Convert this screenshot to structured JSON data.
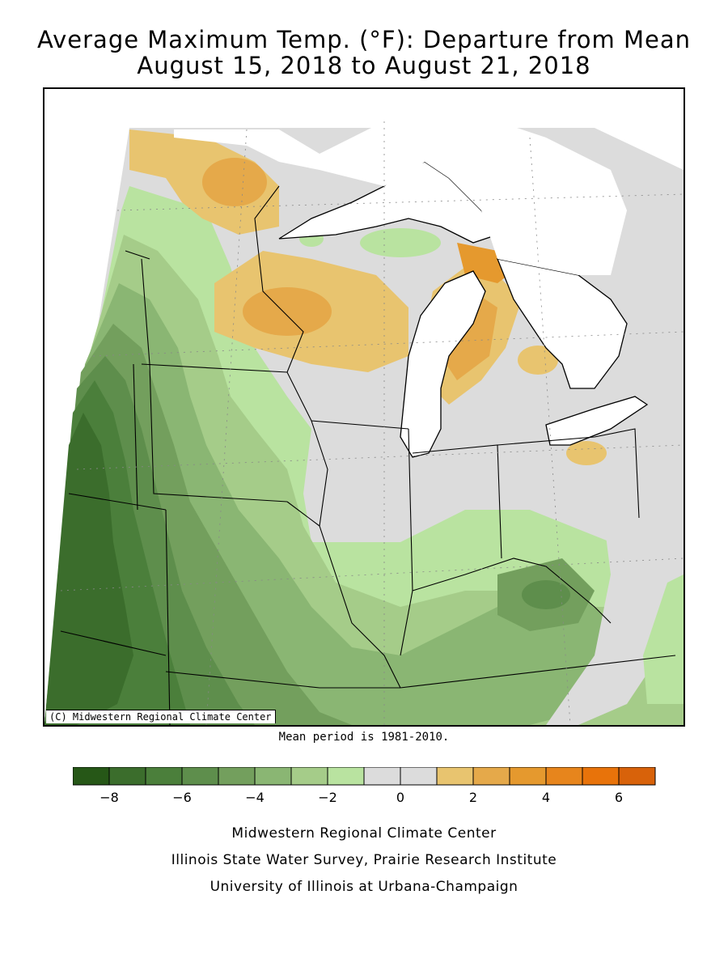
{
  "title_line1": "Average Maximum Temp. (°F): Departure from Mean",
  "title_line2": "August 15, 2018 to August 21, 2018",
  "map": {
    "copyright": "(C) Midwestern Regional Climate Center",
    "mean_period": "Mean period is 1981-2010."
  },
  "legend": {
    "colors": [
      "#265717",
      "#3b6d2c",
      "#4b7f3b",
      "#5e8e4c",
      "#739f5d",
      "#8ab673",
      "#a5cc89",
      "#b9e3a0",
      "#dcdcdc",
      "#dcdcdc",
      "#e8c46f",
      "#e5a94a",
      "#e5992e",
      "#e7851c",
      "#e8730a",
      "#d8620a"
    ],
    "tick_labels": [
      "-8",
      "-6",
      "-4",
      "-2",
      "0",
      "2",
      "4",
      "6"
    ]
  },
  "credits": [
    "Midwestern Regional Climate Center",
    "Illinois State Water Survey, Prairie Research Institute",
    "University of Illinois at Urbana-Champaign"
  ]
}
